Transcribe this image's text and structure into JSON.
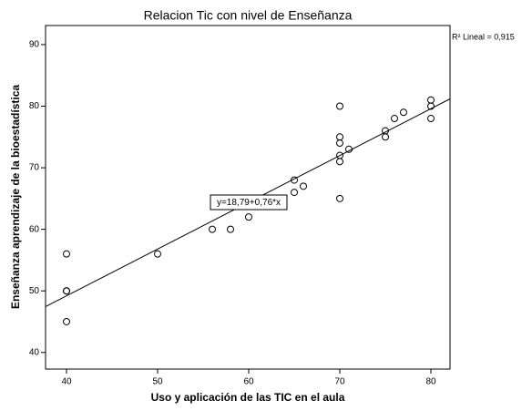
{
  "chart_data": {
    "type": "scatter",
    "title": "Relacion Tic con nivel de Enseñanza",
    "x_label": "Uso y aplicación de las TIC en el aula",
    "y_label": "Enseñanza aprendizaje de la bioestadística",
    "annotation": "y=18,79+0,76*x",
    "r2_label": "R² Lineal = 0,915",
    "trendline": {
      "intercept": 18.79,
      "slope": 0.76
    },
    "x": [
      40,
      40,
      40,
      40,
      50,
      56,
      58,
      60,
      65,
      65,
      66,
      70,
      70,
      70,
      70,
      70,
      70,
      71,
      75,
      75,
      76,
      77,
      80,
      80,
      80
    ],
    "values": [
      56,
      50,
      50,
      45,
      56,
      60,
      60,
      62,
      68,
      66,
      67,
      80,
      75,
      74,
      72,
      71,
      65,
      73,
      76,
      75,
      78,
      79,
      81,
      80,
      78
    ],
    "color": "#000000",
    "xlim": [
      37.7,
      82.1
    ],
    "xticks": [
      40,
      50,
      60,
      70,
      80
    ],
    "ylim": [
      37.3,
      93.1
    ],
    "yticks": [
      40,
      50,
      60,
      70,
      80,
      90
    ]
  }
}
